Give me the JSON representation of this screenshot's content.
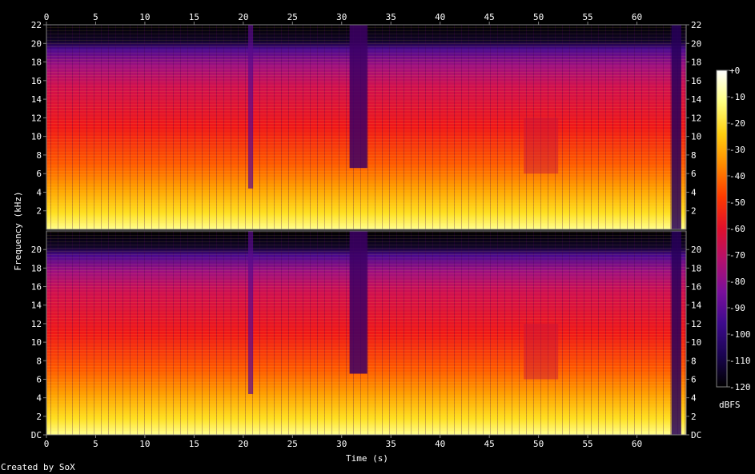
{
  "chart_data": {
    "type": "heatmap",
    "title": "",
    "xlabel": "Time (s)",
    "ylabel": "Frequency (kHz)",
    "xlim": [
      0,
      65
    ],
    "ylim": [
      0,
      22
    ],
    "x_ticks": [
      "0",
      "5",
      "10",
      "15",
      "20",
      "25",
      "30",
      "35",
      "40",
      "45",
      "50",
      "55",
      "60"
    ],
    "y_ticks_channel_top": [
      "2",
      "4",
      "6",
      "8",
      "10",
      "12",
      "14",
      "16",
      "18",
      "20",
      "22"
    ],
    "y_ticks_channel_bottom": [
      "DC",
      "2",
      "4",
      "6",
      "8",
      "10",
      "12",
      "14",
      "16",
      "18",
      "20"
    ],
    "channels": 2,
    "colorbar": {
      "label": "dBFS",
      "ticks": [
        "+0",
        "-10",
        "-20",
        "-30",
        "-40",
        "-50",
        "-60",
        "-70",
        "-80",
        "-90",
        "-100",
        "-110",
        "-120"
      ],
      "range": [
        -120,
        0
      ]
    },
    "colors": {
      "background": "#000000",
      "axis": "#808080",
      "text": "#ffffff",
      "colormap": [
        "#000000",
        "#1a0450",
        "#3d0a8c",
        "#7a0f9c",
        "#b3106e",
        "#e0102c",
        "#ff3a00",
        "#ff8a00",
        "#ffcf10",
        "#ffff80",
        "#ffffff"
      ]
    },
    "features": [
      {
        "description": "Quiet section",
        "x_start": 30.8,
        "x_end": 32.6
      },
      {
        "description": "High-frequency dropout",
        "x_start": 20.5,
        "x_end": 21.0
      },
      {
        "description": "Reduced energy 6-12 kHz",
        "x_start": 48.5,
        "x_end": 52.0
      },
      {
        "description": "Fade out",
        "x_start": 63.5,
        "x_end": 64.5
      }
    ]
  },
  "footer": {
    "credit": "Created by SoX"
  }
}
